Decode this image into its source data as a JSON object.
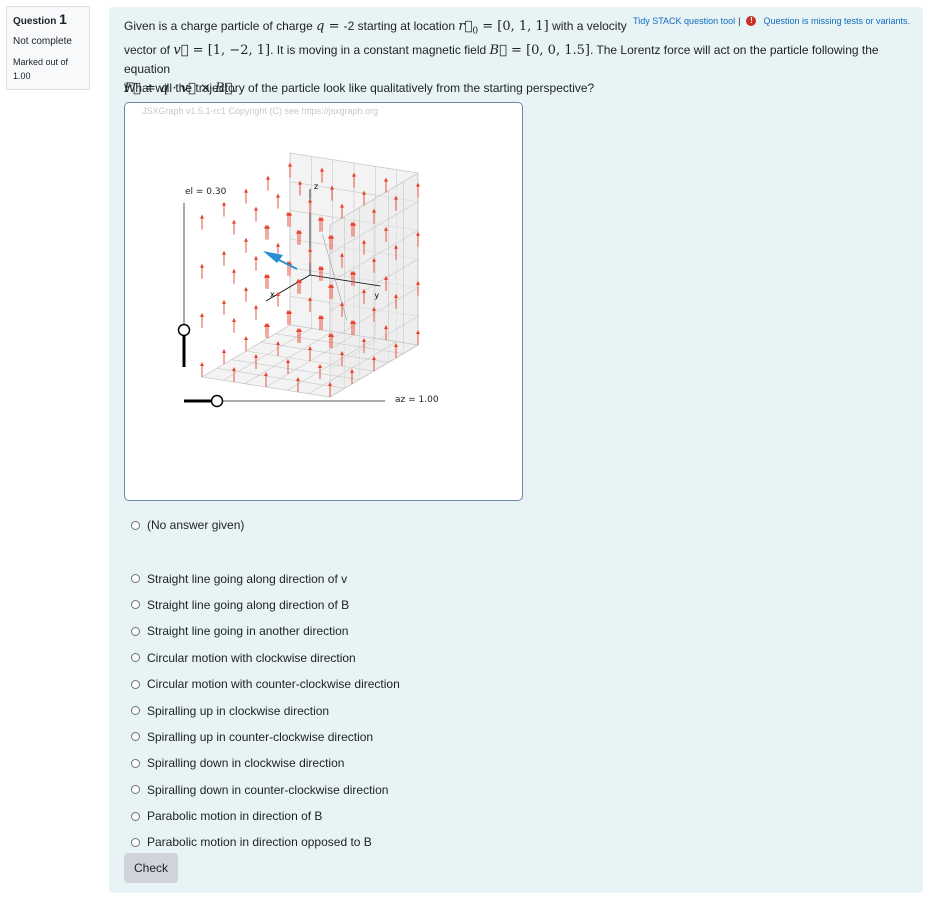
{
  "info": {
    "question_label": "Question",
    "question_number": "1",
    "state": "Not complete",
    "grade_line1": "Marked out of",
    "grade_line2": "1.00"
  },
  "toolbar": {
    "tidy_link": "Tidy STACK question tool",
    "separator": "|",
    "warning_icon": "exclamation-circle-icon",
    "warning_color": "#ca3120",
    "missing_link": "Question is missing tests or variants."
  },
  "question": {
    "t1": "Given is a charge particle of charge ",
    "charge_value": "-2",
    "t2": " starting at location ",
    "r0": "[0, 1, 1]",
    "t3": " with a velocity",
    "t4": "vector of ",
    "v": "[1, −2, 1]",
    "t5": ". It is moving in a constant magnetic field ",
    "B": "[0, 0, 1.5]",
    "t6": ". The Lorentz force will act on the particle following the equation",
    "prompt": "What will the trajectory of the particle look like qualitatively from the starting perspective?"
  },
  "jsxgraph": {
    "copyright": "JSXGraph v1.5.1-rc1 Copyright (C) see https://jsxgraph.org",
    "el_label": "el = 0.30",
    "az_label": "az = 1.00",
    "axis_x": "x",
    "axis_y": "y",
    "axis_z": "z",
    "field_arrow_color": "#e8412c",
    "velocity_arrow_color": "#2b8fd3",
    "elevation": 0.3,
    "azimuth": 1.0
  },
  "answers": {
    "no_answer": "(No answer given)",
    "options": [
      "Straight line going along direction of v",
      "Straight line going along direction of B",
      "Straight line going in another direction",
      "Circular motion with clockwise direction",
      "Circular motion with counter-clockwise direction",
      "Spiralling up in clockwise direction",
      "Spiralling up in counter-clockwise direction",
      "Spiralling down in clockwise direction",
      "Spiralling down in counter-clockwise direction",
      "Parabolic motion in direction of B",
      "Parabolic motion in direction opposed to B"
    ]
  },
  "check_label": "Check"
}
